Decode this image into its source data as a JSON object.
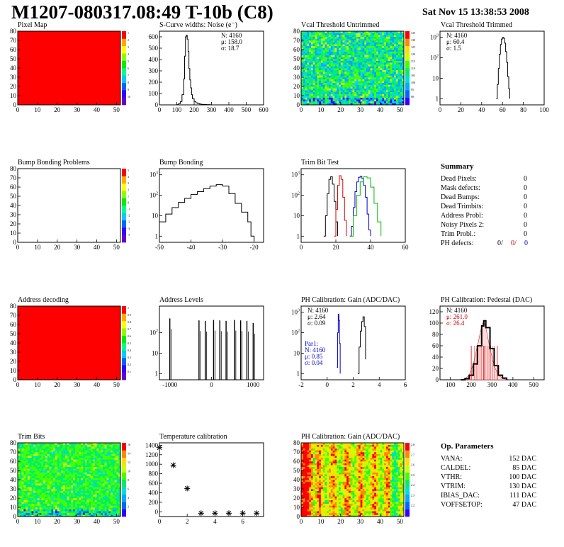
{
  "header": {
    "title": "M1207-080317.08:49 T-10b (C8)",
    "date": "Sat Nov 15 13:38:53 2008"
  },
  "panels": {
    "pixel_map": {
      "title": "Pixel Map"
    },
    "scurve": {
      "title": "S-Curve widths: Noise (e⁻)",
      "stats": [
        "N: 4160",
        "μ: 158.0",
        "σ: 18.7"
      ]
    },
    "vcal_untrim": {
      "title": "Vcal Threshold Untrimmed"
    },
    "vcal_trim": {
      "title": "Vcal Threshold Trimmed",
      "stats": [
        "N: 4160",
        "μ: 60.4",
        "σ:  1.5"
      ]
    },
    "bump_problems": {
      "title": "Bump Bonding Problems"
    },
    "bump_bonding": {
      "title": "Bump Bonding"
    },
    "trim_bit_test": {
      "title": "Trim Bit Test"
    },
    "address_decoding": {
      "title": "Address decoding"
    },
    "address_levels": {
      "title": "Address Levels"
    },
    "ph_gain": {
      "title": "PH Calibration: Gain (ADC/DAC)",
      "stats": [
        "N: 4160",
        "μ: 2.64",
        "σ: 0.09"
      ],
      "par1": [
        "Par1:",
        "N: 4160",
        "μ: 0.85",
        "σ: 0.04"
      ]
    },
    "ph_pedestal": {
      "title": "PH Calibration: Pedestal (DAC)",
      "stats": [
        "N: 4160",
        "μ: 261.0",
        "σ: 26.4"
      ]
    },
    "trim_bits": {
      "title": "Trim Bits"
    },
    "temperature": {
      "title": "Temperature calibration"
    },
    "ph_gain_map": {
      "title": "PH Calibration: Gain (ADC/DAC)"
    }
  },
  "summary": {
    "heading": "Summary",
    "rows": [
      {
        "label": "Dead Pixels:",
        "value": "0"
      },
      {
        "label": "Mask defects:",
        "value": "0"
      },
      {
        "label": "Dead Bumps:",
        "value": "0"
      },
      {
        "label": "Dead Trimbits:",
        "value": "0"
      },
      {
        "label": "Address Probl:",
        "value": "0"
      },
      {
        "label": "Noisy Pixels 2:",
        "value": "0"
      },
      {
        "label": "Trim Probl.:",
        "value": "0"
      }
    ],
    "ph_label": "PH defects:",
    "ph_values": [
      "0/",
      "0/",
      "0"
    ],
    "ph_colors": [
      "#000000",
      "#cc0000",
      "#0000cc"
    ]
  },
  "op_params": {
    "heading": "Op. Parameters",
    "rows": [
      {
        "label": "VANA:",
        "value": "152 DAC"
      },
      {
        "label": "CALDEL:",
        "value": "85 DAC"
      },
      {
        "label": "VTHR:",
        "value": "100 DAC"
      },
      {
        "label": "VTRIM:",
        "value": "130 DAC"
      },
      {
        "label": "IBIAS_DAC:",
        "value": "111 DAC"
      },
      {
        "label": "VOFFSETOP:",
        "value": "47 DAC"
      }
    ]
  },
  "colors": {
    "map_red": "#ff0000",
    "red": "#cc0000",
    "blue": "#0000cc",
    "green": "#00bb00"
  },
  "chart_data": [
    {
      "id": "pixel_map",
      "type": "heatmap",
      "title": "Pixel Map",
      "xlim": [
        0,
        52
      ],
      "ylim": [
        0,
        80
      ],
      "xticks": [
        0,
        10,
        20,
        30,
        40,
        50
      ],
      "yticks": [
        0,
        10,
        20,
        30,
        40,
        50,
        60,
        70,
        80
      ],
      "fill": "uniform-max",
      "palette": [
        "#6600cc",
        "#3300ff",
        "#0066ff",
        "#00ccff",
        "#00ff88",
        "#00ee00",
        "#88ff00",
        "#ffff00",
        "#ffaa00",
        "#ff0000"
      ],
      "zticks": [
        "1",
        "2",
        "3",
        "4",
        "5",
        "6",
        "7",
        "8",
        "9",
        "10"
      ]
    },
    {
      "id": "scurve",
      "type": "area",
      "title": "S-Curve widths: Noise (e⁻)",
      "xlim": [
        0,
        600
      ],
      "ylim": [
        0,
        650
      ],
      "xticks": [
        0,
        100,
        200,
        300,
        400,
        500,
        600
      ],
      "yticks": [
        0,
        100,
        200,
        300,
        400,
        500,
        600
      ],
      "x": [
        90,
        100,
        110,
        120,
        130,
        140,
        145,
        150,
        155,
        160,
        165,
        170,
        175,
        180,
        185,
        190,
        200,
        210,
        220,
        230,
        240,
        250,
        260,
        270,
        280,
        290,
        300
      ],
      "y": [
        0,
        2,
        10,
        30,
        90,
        230,
        430,
        600,
        615,
        580,
        470,
        320,
        220,
        150,
        90,
        55,
        30,
        18,
        12,
        8,
        5,
        4,
        3,
        2,
        2,
        1,
        0
      ]
    },
    {
      "id": "vcal_untrim",
      "type": "heatmap",
      "title": "Vcal Threshold Untrimmed",
      "xlim": [
        0,
        52
      ],
      "ylim": [
        0,
        80
      ],
      "xticks": [
        0,
        10,
        20,
        30,
        40,
        50
      ],
      "yticks": [
        0,
        10,
        20,
        30,
        40,
        50,
        60,
        70,
        80
      ],
      "zticks": [
        "135",
        "130",
        "125",
        "120",
        "115",
        "110",
        "105",
        "100",
        "95",
        "90"
      ],
      "palette": [
        "#3300ff",
        "#0066ff",
        "#00aaff",
        "#00dddd",
        "#00ee66",
        "#44ff00",
        "#ccff00",
        "#ffdd00",
        "#ff8800",
        "#ff0000"
      ],
      "bias": 0.42,
      "spread": 0.22
    },
    {
      "id": "vcal_trim",
      "type": "line",
      "log": true,
      "title": "Vcal Threshold Trimmed",
      "xlim": [
        0,
        100
      ],
      "ylim": [
        0.5,
        2000
      ],
      "xticks": [
        0,
        20,
        40,
        60,
        80,
        100
      ],
      "yticks": [
        1,
        10,
        100,
        1000
      ],
      "x": [
        54,
        55,
        56,
        57,
        58,
        59,
        60,
        61,
        62,
        63,
        64,
        65,
        66,
        67
      ],
      "y": [
        1,
        5,
        30,
        150,
        450,
        820,
        1000,
        900,
        520,
        200,
        60,
        12,
        3,
        1
      ]
    },
    {
      "id": "bump_problems",
      "type": "heatmap",
      "title": "Bump Bonding Problems",
      "xlim": [
        0,
        52
      ],
      "ylim": [
        0,
        80
      ],
      "xticks": [
        0,
        10,
        20,
        30,
        40,
        50
      ],
      "yticks": [
        0,
        10,
        20,
        30,
        40,
        50,
        60,
        70,
        80
      ],
      "fill": "empty",
      "palette": [
        "#6600cc",
        "#3300ff",
        "#0066ff",
        "#00ccff",
        "#00ff88",
        "#00ee00",
        "#88ff00",
        "#ffff00",
        "#ffaa00",
        "#ff0000"
      ],
      "zticks": [
        "5",
        "4",
        "3",
        "2",
        "1",
        "0",
        "-1",
        "-2",
        "-3",
        "-4",
        "-5"
      ]
    },
    {
      "id": "bump_bonding",
      "type": "line",
      "log": true,
      "title": "Bump Bonding",
      "xlim": [
        -50,
        -17
      ],
      "ylim": [
        0.5,
        2000
      ],
      "xticks": [
        -50,
        -40,
        -30,
        -20
      ],
      "yticks": [
        1,
        10,
        100,
        1000
      ],
      "x": [
        -50,
        -48,
        -46,
        -44,
        -42,
        -40,
        -38,
        -36,
        -34,
        -32,
        -30,
        -28,
        -26,
        -24,
        -22,
        -21,
        -20
      ],
      "y": [
        5,
        12,
        25,
        45,
        70,
        110,
        150,
        210,
        280,
        330,
        280,
        120,
        40,
        15,
        5,
        1,
        0.6
      ]
    },
    {
      "id": "trim_bit_test",
      "type": "line",
      "log": true,
      "title": "Trim Bit Test",
      "xlim": [
        0,
        60
      ],
      "ylim": [
        0.5,
        2000
      ],
      "xticks": [
        0,
        20,
        40,
        60
      ],
      "yticks": [
        1,
        10,
        100,
        1000
      ],
      "series": [
        {
          "color": "#000000",
          "x": [
            13,
            14,
            15,
            16,
            17,
            18,
            19,
            20,
            21
          ],
          "y": [
            1,
            10,
            120,
            600,
            800,
            350,
            50,
            5,
            1
          ]
        },
        {
          "color": "#cc0000",
          "x": [
            19,
            20,
            21,
            22,
            23,
            24,
            25,
            26
          ],
          "y": [
            1,
            20,
            300,
            900,
            600,
            80,
            6,
            1
          ]
        },
        {
          "color": "#0000cc",
          "x": [
            28,
            29,
            30,
            31,
            32,
            33,
            34,
            35,
            36,
            37,
            38,
            39,
            40
          ],
          "y": [
            1,
            3,
            25,
            150,
            450,
            750,
            850,
            650,
            300,
            80,
            12,
            2,
            1
          ]
        },
        {
          "color": "#00bb00",
          "x": [
            28,
            30,
            32,
            34,
            36,
            38,
            40,
            42,
            44,
            46
          ],
          "y": [
            1,
            10,
            100,
            450,
            800,
            700,
            250,
            40,
            5,
            1
          ]
        }
      ]
    },
    {
      "id": "address_decoding",
      "type": "heatmap",
      "title": "Address decoding",
      "xlim": [
        0,
        52
      ],
      "ylim": [
        0,
        80
      ],
      "xticks": [
        0,
        10,
        20,
        30,
        40,
        50
      ],
      "yticks": [
        0,
        10,
        20,
        30,
        40,
        50,
        60,
        70,
        80
      ],
      "fill": "uniform-max",
      "palette": [
        "#6600cc",
        "#3300ff",
        "#0066ff",
        "#00ccff",
        "#00ff88",
        "#00ee00",
        "#88ff00",
        "#ffff00",
        "#ffaa00",
        "#ff0000"
      ],
      "zticks": [
        "1",
        "0.9",
        "0.8",
        "0.7",
        "0.6",
        "0.5",
        "0.4",
        "0.3",
        "0.2",
        "0.1"
      ]
    },
    {
      "id": "address_levels",
      "type": "bar",
      "log": true,
      "title": "Address Levels",
      "xlim": [
        -1250,
        1250
      ],
      "ylim": [
        0.5,
        2000
      ],
      "xticks": [
        -1000,
        0,
        1000
      ],
      "yticks": [
        1,
        10,
        100
      ],
      "x": [
        -1000,
        -300,
        -150,
        50,
        200,
        350,
        550,
        700,
        850,
        1000
      ],
      "y": [
        500,
        400,
        380,
        420,
        400,
        380,
        420,
        400,
        380,
        300
      ]
    },
    {
      "id": "ph_gain",
      "type": "line",
      "log": true,
      "title": "PH Calibration: Gain (ADC/DAC)",
      "xlim": [
        -2,
        6
      ],
      "ylim": [
        0.5,
        2000
      ],
      "xticks": [
        -2,
        0,
        2,
        4,
        6
      ],
      "yticks": [
        1,
        10,
        100,
        1000
      ],
      "series": [
        {
          "color": "#0000cc",
          "x": [
            0.75,
            0.8,
            0.85,
            0.9,
            0.95,
            1.0
          ],
          "y": [
            2,
            100,
            800,
            400,
            30,
            1
          ]
        },
        {
          "color": "#000000",
          "x": [
            2.35,
            2.45,
            2.55,
            2.65,
            2.75,
            2.85,
            2.95
          ],
          "y": [
            1,
            20,
            120,
            350,
            600,
            200,
            5
          ]
        }
      ]
    },
    {
      "id": "ph_pedestal",
      "type": "area",
      "title": "PH Calibration: Pedestal (DAC)",
      "xlim": [
        50,
        550
      ],
      "ylim": [
        0,
        130
      ],
      "xticks": [
        100,
        200,
        300,
        400,
        500
      ],
      "yticks": [
        0,
        20,
        40,
        60,
        80,
        100,
        120
      ],
      "x": [
        150,
        170,
        190,
        210,
        230,
        250,
        260,
        270,
        290,
        310,
        330,
        350,
        370
      ],
      "y": [
        0,
        2,
        8,
        28,
        60,
        95,
        104,
        92,
        55,
        25,
        8,
        3,
        0
      ],
      "markers": [
        200,
        261,
        325
      ]
    },
    {
      "id": "trim_bits",
      "type": "heatmap",
      "title": "Trim Bits",
      "xlim": [
        0,
        52
      ],
      "ylim": [
        0,
        80
      ],
      "xticks": [
        0,
        10,
        20,
        30,
        40,
        50
      ],
      "yticks": [
        0,
        10,
        20,
        30,
        40,
        50,
        60,
        70,
        80
      ],
      "zticks": [
        "16",
        "14",
        "12",
        "10",
        "8",
        "6",
        "4",
        "2"
      ],
      "palette": [
        "#3300ff",
        "#0066ff",
        "#00aaff",
        "#00dddd",
        "#00ee66",
        "#44ff00",
        "#ccff00",
        "#ffdd00",
        "#ff8800",
        "#ff0000"
      ],
      "bias": 0.5,
      "spread": 0.12
    },
    {
      "id": "temperature",
      "type": "scatter",
      "title": "Temperature calibration",
      "xlim": [
        0,
        7.5
      ],
      "ylim": [
        -100,
        1450
      ],
      "xticks": [
        0,
        2,
        4,
        6
      ],
      "yticks": [
        0,
        200,
        400,
        600,
        800,
        1000,
        1200,
        1400
      ],
      "x": [
        0,
        1,
        2,
        3,
        4,
        5,
        6,
        7
      ],
      "y": [
        1350,
        980,
        490,
        -30,
        -30,
        -30,
        -30,
        -30
      ]
    },
    {
      "id": "ph_gain_map",
      "type": "heatmap",
      "title": "PH Calibration: Gain (ADC/DAC)",
      "xlim": [
        0,
        52
      ],
      "ylim": [
        0,
        80
      ],
      "xticks": [
        0,
        10,
        20,
        30,
        40,
        50
      ],
      "yticks": [
        0,
        10,
        20,
        30,
        40,
        50,
        60,
        70,
        80
      ],
      "zticks": [
        "2.8",
        "2.7",
        "2.6",
        "2.5",
        "2.4",
        "2.3",
        "2.2"
      ],
      "palette": [
        "#3300ff",
        "#0066ff",
        "#00aaff",
        "#00dddd",
        "#00ee66",
        "#44ff00",
        "#ccff00",
        "#ffdd00",
        "#ff8800",
        "#ff0000"
      ],
      "bias": 0.72,
      "spread": 0.15,
      "column_variation": true
    }
  ]
}
